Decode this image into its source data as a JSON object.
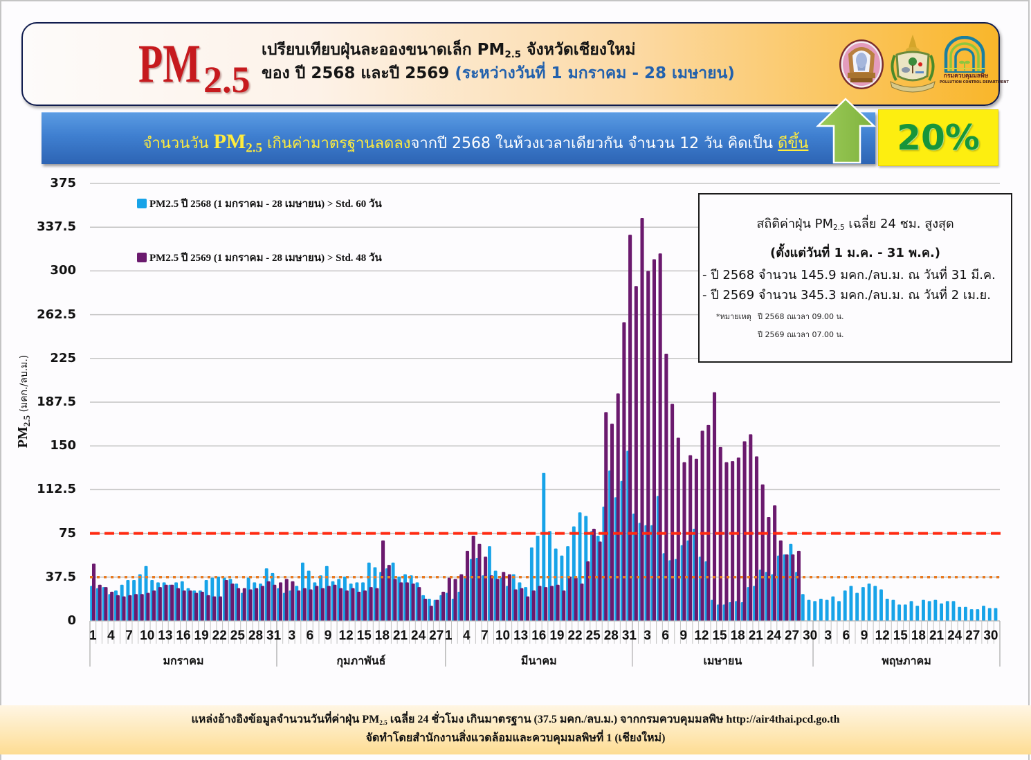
{
  "header": {
    "logo": {
      "pm": "PM",
      "sub": "2.5"
    },
    "title": {
      "line1_pre": "เปรียบเทียบฝุ่นละอองขนาดเล็ก PM",
      "line1_sub": "2.5",
      "line1_post": " จังหวัดเชียงใหม่",
      "line2_main": "ของ ปี 2568 และปี 2569 ",
      "line2_period": "(ระหว่างวันที่ 1 มกราคม - 28 เมษายน)"
    },
    "logos": [
      {
        "icon": "chiang-mai-province-seal-icon"
      },
      {
        "icon": "government-crest-icon"
      },
      {
        "icon": "pcd-logo-icon",
        "text_th": "กรมควบคุมมลพิษ",
        "text_en": "POLLUTION CONTROL DEPARTMENT"
      }
    ]
  },
  "summary": {
    "part1": "จำนวนวัน ",
    "pm": "PM",
    "pm_sub": "2.5",
    "part2": " เกินค่ามาตรฐานลดลง",
    "part3": "จากปี 2568 ในห้วงเวลาเดียวกัน จำนวน 12 วัน คิดเป็น ",
    "part4": "ดีขึ้น",
    "arrow_icon": "arrow-up-icon",
    "percent": "20%",
    "colors": {
      "highlight": "#ffec3d",
      "arrow": "#8cbd4a",
      "percent": "#17953a",
      "percent_box": "#fdee10"
    }
  },
  "stats_box": {
    "title_pre": "สถิติค่าฝุ่น PM",
    "title_sub": "2.5",
    "title_post": " เฉลี่ย 24 ชม. สูงสุด",
    "subtitle": "(ตั้งแต่วันที่ 1 ม.ค. - 31 พ.ค.)",
    "lines": [
      "- ปี 2568 จำนวน 145.9 มคก./ลบ.ม. ณ วันที่ 31 มี.ค.",
      "- ปี 2569 จำนวน 345.3 มคก./ลบ.ม. ณ วันที่ 2 เม.ย."
    ],
    "note_label": "*หมายเหตุ",
    "note_lines": [
      "ปี 2568 ณเวลา 09.00 น.",
      "ปี 2569 ณเวลา 07.00 น."
    ]
  },
  "chart_data": {
    "type": "bar",
    "title": "",
    "ylabel": {
      "main": "PM",
      "sub": "2.5",
      "unit": " (มคก./ลบ.ม.)"
    },
    "ylim": [
      0,
      375
    ],
    "yticks": [
      0,
      37.5,
      75,
      112.5,
      150,
      187.5,
      225,
      262.5,
      300,
      337.5,
      375
    ],
    "grid": true,
    "legend_position": "top-left",
    "months": [
      {
        "label": "มกราคม",
        "days": 31,
        "tick_labels": [
          "1",
          "4",
          "7",
          "10",
          "13",
          "16",
          "19",
          "22",
          "25",
          "28",
          "31"
        ]
      },
      {
        "label": "กุมภาพันธ์",
        "days": 28,
        "tick_labels": [
          "3",
          "6",
          "9",
          "12",
          "15",
          "18",
          "21",
          "24",
          "27"
        ]
      },
      {
        "label": "มีนาคม",
        "days": 31,
        "tick_labels": [
          "1",
          "4",
          "7",
          "10",
          "13",
          "16",
          "19",
          "22",
          "25",
          "28",
          "31"
        ]
      },
      {
        "label": "เมษายน",
        "days": 30,
        "tick_labels": [
          "3",
          "6",
          "9",
          "12",
          "15",
          "18",
          "21",
          "24",
          "27",
          "30"
        ]
      },
      {
        "label": "พฤษภาคม",
        "days": 31,
        "tick_labels": [
          "3",
          "6",
          "9",
          "12",
          "15",
          "18",
          "21",
          "24",
          "27",
          "30"
        ]
      }
    ],
    "series": [
      {
        "name": "PM2.5 ปี 2568 (1 มกราคม - 28 เมษายน) > Std. 60 วัน",
        "color": "#17a3e8",
        "values": [
          30,
          28,
          29,
          23,
          26,
          31,
          35,
          35,
          40,
          47,
          35,
          33,
          33,
          31,
          33,
          34,
          28,
          26,
          26,
          35,
          37,
          38,
          37,
          36,
          32,
          24,
          37,
          33,
          32,
          45,
          41,
          28,
          24,
          26,
          30,
          50,
          43,
          33,
          39,
          47,
          34,
          36,
          38,
          32,
          33,
          33,
          50,
          46,
          42,
          45,
          50,
          38,
          40,
          39,
          33,
          22,
          19,
          18,
          22,
          24,
          19,
          25,
          38,
          53,
          54,
          39,
          64,
          43,
          37,
          30,
          40,
          33,
          29,
          63,
          73,
          127,
          77,
          62,
          56,
          64,
          81,
          93,
          90,
          77,
          73,
          98,
          129,
          106,
          120,
          145.9,
          92,
          84,
          82,
          82,
          107,
          58,
          52,
          53,
          65,
          69,
          79,
          55,
          51,
          18,
          14,
          14,
          16,
          17,
          16,
          29,
          30,
          44,
          42,
          40,
          56,
          57,
          66,
          42,
          23,
          18,
          17,
          19,
          18,
          21,
          17,
          26,
          30,
          24,
          29,
          32,
          30,
          27,
          19,
          18,
          14,
          14,
          17,
          13,
          18,
          17,
          18,
          15,
          17,
          17,
          12,
          12,
          10,
          10,
          13,
          11,
          11
        ]
      },
      {
        "name": "PM2.5 ปี 2569 (1 มกราคม - 28 เมษายน) > Std. 48 วัน",
        "color": "#6b1a6e",
        "values": [
          49,
          31,
          29,
          25,
          22,
          21,
          22,
          23,
          23,
          24,
          26,
          29,
          31,
          31,
          28,
          26,
          26,
          24,
          25,
          22,
          21,
          21,
          35,
          32,
          28,
          28,
          27,
          28,
          30,
          34,
          31,
          33,
          36,
          34,
          26,
          28,
          27,
          30,
          28,
          30,
          31,
          28,
          26,
          28,
          25,
          26,
          29,
          28,
          69,
          48,
          36,
          33,
          33,
          32,
          29,
          19,
          13,
          18,
          25,
          37,
          36,
          40,
          60,
          73,
          66,
          55,
          39,
          36,
          42,
          40,
          27,
          28,
          21,
          26,
          30,
          29,
          30,
          31,
          26,
          38,
          37,
          32,
          51,
          79,
          68,
          179,
          169,
          195,
          256,
          331,
          287,
          345.3,
          300,
          310,
          315,
          229,
          186,
          157,
          136,
          142,
          139,
          163,
          168,
          196,
          149,
          136,
          137,
          140,
          154,
          160,
          141,
          117,
          89,
          99,
          69,
          57,
          57,
          60
        ]
      }
    ],
    "reference_lines": [
      {
        "value": 75,
        "color": "#ff2b12",
        "style": "dashed"
      },
      {
        "value": 37.5,
        "color": "#e8791f",
        "style": "dotted"
      }
    ]
  },
  "footer": {
    "line1_pre": "แหล่งอ้างอิงข้อมูลจำนวนวันที่ค่าฝุ่น PM",
    "line1_sub": "2.5",
    "line1_post": " เฉลี่ย 24 ชั่วโมง เกินมาตรฐาน (37.5 มคก./ลบ.ม.) จากกรมควบคุมมลพิษ http://air4thai.pcd.go.th",
    "line2": "จัดทำโดยสำนักงานสิ่งแวดล้อมและควบคุมมลพิษที่ 1 (เชียงใหม่)"
  }
}
